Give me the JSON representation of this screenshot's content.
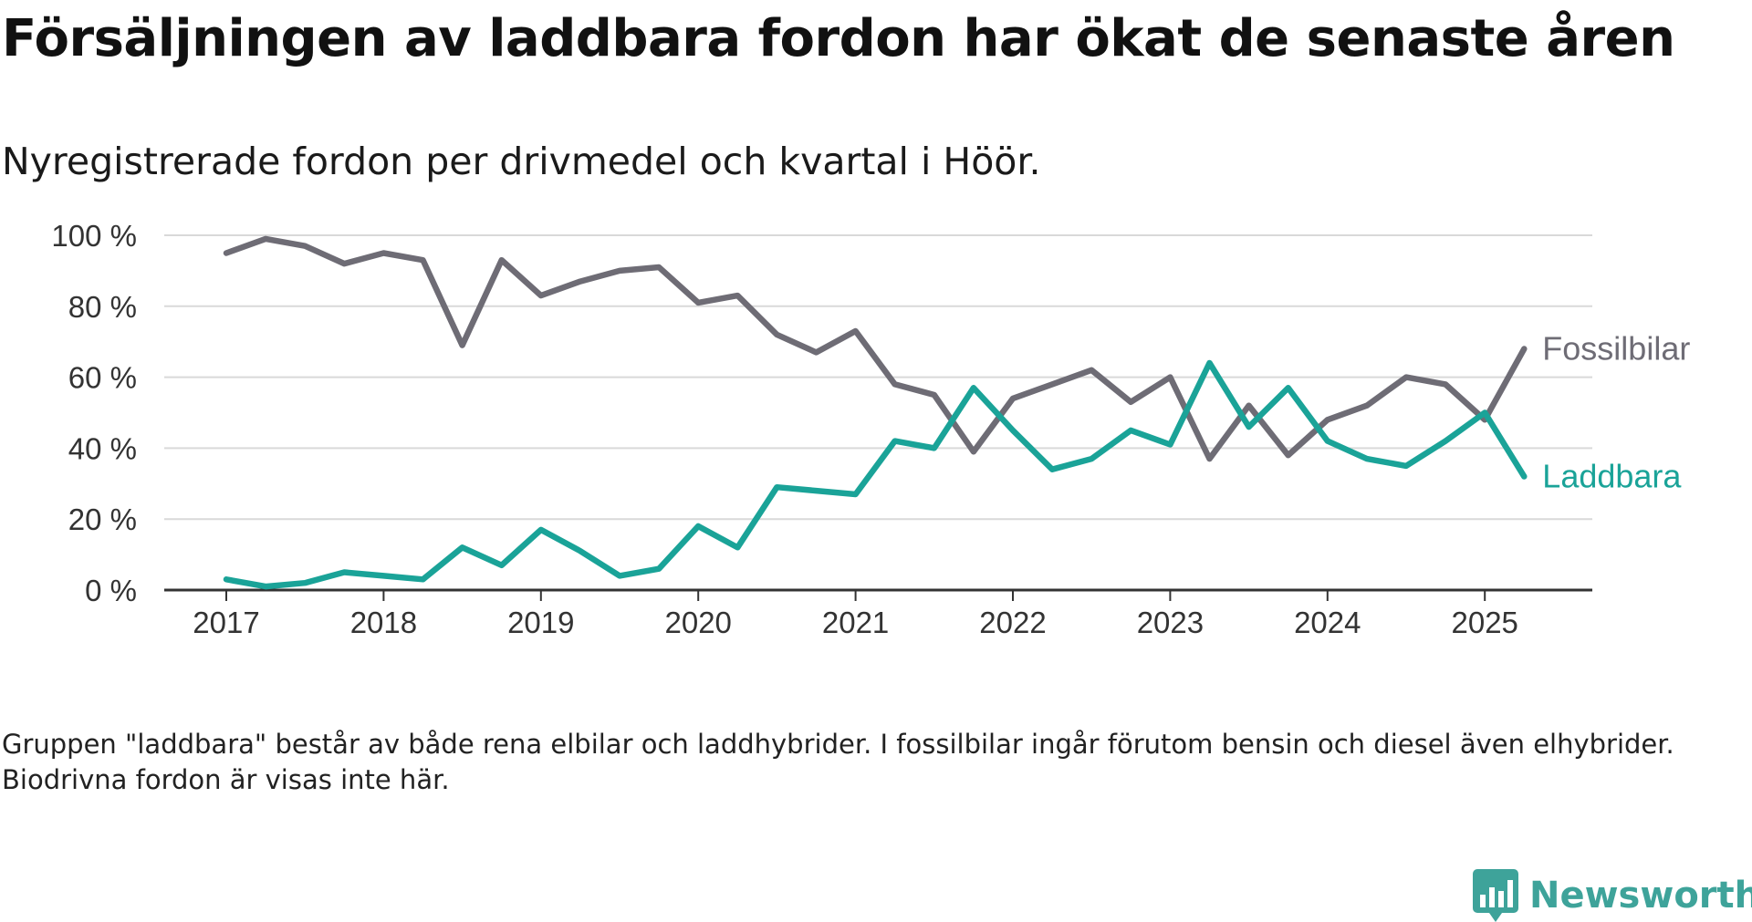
{
  "title": "Försäljningen av laddbara fordon har ökat de senaste åren",
  "subtitle": "Nyregistrerade fordon per drivmedel och kvartal i Höör.",
  "note": "Gruppen \"laddbara\" består av både rena elbilar och laddhybrider. I fossilbilar ingår förutom bensin och diesel även elhybrider. Biodrivna fordon är visas inte här.",
  "brand": {
    "name": "Newsworthy",
    "icon": "newsworthy-logo-icon",
    "color": "#3ea39a"
  },
  "chart_data": {
    "type": "line",
    "x": [
      "2017-Q1",
      "2017-Q2",
      "2017-Q3",
      "2017-Q4",
      "2018-Q1",
      "2018-Q2",
      "2018-Q3",
      "2018-Q4",
      "2019-Q1",
      "2019-Q2",
      "2019-Q3",
      "2019-Q4",
      "2020-Q1",
      "2020-Q2",
      "2020-Q3",
      "2020-Q4",
      "2021-Q1",
      "2021-Q2",
      "2021-Q3",
      "2021-Q4",
      "2022-Q1",
      "2022-Q2",
      "2022-Q3",
      "2022-Q4",
      "2023-Q1",
      "2023-Q2",
      "2023-Q3",
      "2023-Q4",
      "2024-Q1",
      "2024-Q2",
      "2024-Q3",
      "2024-Q4",
      "2025-Q1",
      "2025-Q2"
    ],
    "x_tick_labels": [
      "2017",
      "2018",
      "2019",
      "2020",
      "2021",
      "2022",
      "2023",
      "2024",
      "2025"
    ],
    "y_tick_labels": [
      "0 %",
      "20 %",
      "40 %",
      "60 %",
      "80 %",
      "100 %"
    ],
    "ylim": [
      0,
      100
    ],
    "grid": true,
    "series": [
      {
        "name": "Fossilbilar",
        "color": "#6e6c75",
        "values": [
          95,
          99,
          97,
          92,
          95,
          93,
          69,
          93,
          83,
          87,
          90,
          91,
          81,
          83,
          72,
          67,
          73,
          58,
          55,
          39,
          54,
          58,
          62,
          53,
          60,
          37,
          52,
          38,
          48,
          52,
          60,
          58,
          48,
          68
        ]
      },
      {
        "name": "Laddbara",
        "color": "#1aa398",
        "values": [
          3,
          1,
          2,
          5,
          4,
          3,
          12,
          7,
          17,
          11,
          4,
          6,
          18,
          12,
          29,
          28,
          27,
          42,
          40,
          57,
          45,
          34,
          37,
          45,
          41,
          64,
          46,
          57,
          42,
          37,
          35,
          42,
          50,
          32
        ]
      }
    ]
  }
}
